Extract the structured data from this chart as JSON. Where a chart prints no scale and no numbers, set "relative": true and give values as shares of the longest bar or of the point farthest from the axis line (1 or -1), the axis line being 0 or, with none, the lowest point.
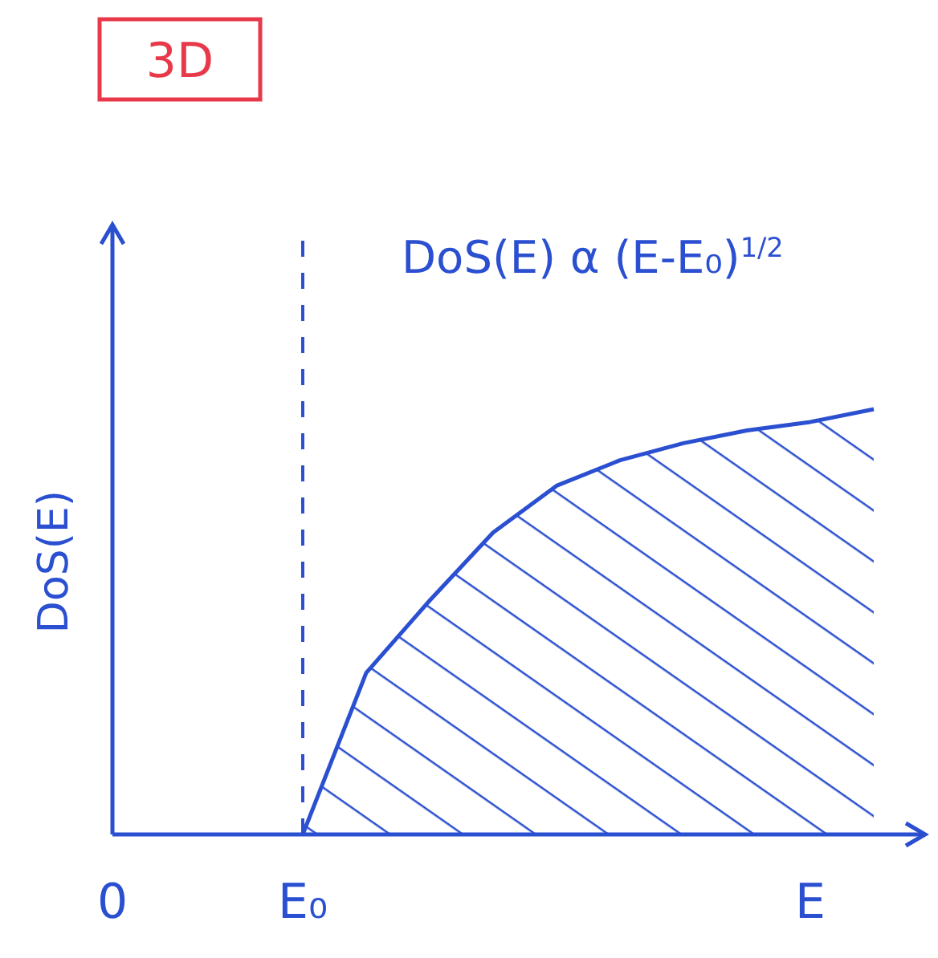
{
  "chart_data": {
    "type": "area",
    "title": "3D",
    "ylabel": "DoS(E)",
    "relative": true,
    "annotations": [
      "DoS(E) α (E-E₀)$^{1/2}$"
    ],
    "categories": [
      "0",
      null,
      null,
      "E₀",
      null,
      null,
      null,
      null,
      null,
      null,
      null,
      "E",
      null
    ],
    "series": [
      {
        "color": "#2a4fd0",
        "values": [
          null,
          null,
          null,
          0,
          0.38,
          0.55,
          0.71,
          0.82,
          0.88,
          0.92,
          0.95,
          0.97,
          1
        ]
      }
    ],
    "ref_lines": [
      {
        "axis": "x",
        "value": "E₀",
        "color": "#2a4fd0",
        "line_style": "dashed"
      }
    ],
    "tick_labels": "x"
  }
}
